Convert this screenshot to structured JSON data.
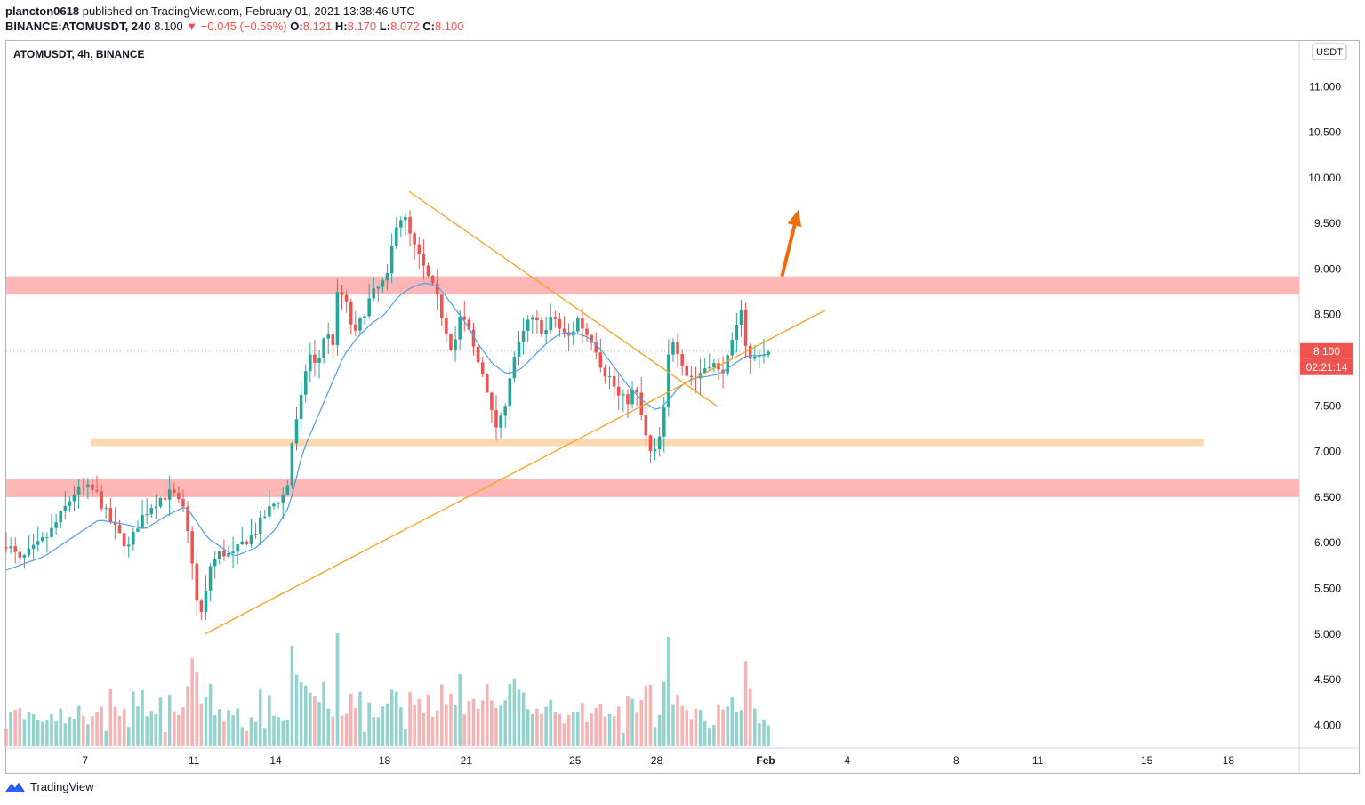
{
  "header": {
    "author": "plancton0618",
    "published": "published on TradingView.com, February 01, 2021 13:38:46 UTC",
    "symbol_line": "BINANCE:ATOMUSDT, 240",
    "last": "8.100",
    "change_arrow": "▼",
    "change": "−0.045 (−0.55%)",
    "o_label": "O:",
    "o": "8.121",
    "h_label": "H:",
    "h": "8.170",
    "l_label": "L:",
    "l": "8.072",
    "c_label": "C:",
    "c": "8.100"
  },
  "chart_title": "ATOMUSDT, 4h, BINANCE",
  "currency_label": "USDT",
  "footer": {
    "brand": "TradingView"
  },
  "colors": {
    "up": "#26a69a",
    "down": "#ef5350",
    "vol_up": "#80cbc4",
    "vol_down": "#f4a6a6",
    "ma": "#4a9fe0",
    "trend": "#f7a01d",
    "arrow": "#f26b0a",
    "zone_red": "#ffb6b6",
    "zone_orange": "#fcd9b0"
  },
  "chart_data": {
    "type": "candlestick",
    "symbol": "ATOMUSDT",
    "interval": "4h",
    "exchange": "BINANCE",
    "last_price": "8.100",
    "countdown": "02:21:14",
    "y_ticks": [
      "4.000",
      "4.500",
      "5.000",
      "5.500",
      "6.000",
      "6.500",
      "7.000",
      "7.500",
      "8.000",
      "8.500",
      "9.000",
      "9.500",
      "10.000",
      "10.500",
      "11.000"
    ],
    "x_ticks": [
      {
        "day": 7,
        "label": "7"
      },
      {
        "day": 11,
        "label": "11"
      },
      {
        "day": 14,
        "label": "14"
      },
      {
        "day": 18,
        "label": "18"
      },
      {
        "day": 21,
        "label": "21"
      },
      {
        "day": 25,
        "label": "25"
      },
      {
        "day": 28,
        "label": "28"
      },
      {
        "day": 32,
        "label": "Feb"
      },
      {
        "day": 35,
        "label": "4"
      },
      {
        "day": 39,
        "label": "8"
      },
      {
        "day": 42,
        "label": "11"
      },
      {
        "day": 46,
        "label": "15"
      },
      {
        "day": 49,
        "label": "18"
      }
    ],
    "ylim": [
      3.75,
      11.5
    ],
    "xlim": [
      4.1,
      51.6
    ],
    "close_anchors": [
      [
        4.1,
        6.0
      ],
      [
        4.6,
        5.8
      ],
      [
        5.2,
        5.95
      ],
      [
        5.7,
        6.1
      ],
      [
        6.2,
        6.35
      ],
      [
        6.6,
        6.55
      ],
      [
        7.0,
        6.6
      ],
      [
        7.4,
        6.55
      ],
      [
        7.8,
        6.3
      ],
      [
        8.2,
        6.1
      ],
      [
        8.6,
        5.95
      ],
      [
        9.0,
        6.25
      ],
      [
        9.4,
        6.4
      ],
      [
        9.8,
        6.5
      ],
      [
        10.2,
        6.55
      ],
      [
        10.6,
        6.35
      ],
      [
        10.9,
        5.9
      ],
      [
        11.1,
        5.35
      ],
      [
        11.3,
        5.2
      ],
      [
        11.6,
        5.75
      ],
      [
        12.0,
        5.9
      ],
      [
        12.4,
        5.85
      ],
      [
        12.8,
        6.0
      ],
      [
        13.2,
        6.1
      ],
      [
        13.6,
        6.3
      ],
      [
        14.0,
        6.45
      ],
      [
        14.4,
        6.55
      ],
      [
        14.6,
        7.1
      ],
      [
        14.9,
        7.5
      ],
      [
        15.2,
        8.1
      ],
      [
        15.5,
        7.9
      ],
      [
        15.8,
        8.3
      ],
      [
        16.1,
        8.2
      ],
      [
        16.3,
        8.8
      ],
      [
        16.6,
        8.6
      ],
      [
        16.9,
        8.25
      ],
      [
        17.2,
        8.5
      ],
      [
        17.5,
        8.7
      ],
      [
        17.8,
        8.8
      ],
      [
        18.1,
        8.9
      ],
      [
        18.4,
        9.5
      ],
      [
        18.7,
        9.6
      ],
      [
        19.0,
        9.3
      ],
      [
        19.3,
        9.1
      ],
      [
        19.6,
        8.9
      ],
      [
        19.9,
        8.7
      ],
      [
        20.2,
        8.4
      ],
      [
        20.5,
        8.1
      ],
      [
        20.8,
        8.5
      ],
      [
        21.1,
        8.3
      ],
      [
        21.4,
        8.0
      ],
      [
        21.7,
        7.8
      ],
      [
        22.0,
        7.3
      ],
      [
        22.2,
        7.25
      ],
      [
        22.4,
        7.5
      ],
      [
        22.7,
        8.0
      ],
      [
        23.0,
        8.2
      ],
      [
        23.3,
        8.45
      ],
      [
        23.6,
        8.4
      ],
      [
        23.9,
        8.3
      ],
      [
        24.2,
        8.5
      ],
      [
        24.5,
        8.3
      ],
      [
        24.8,
        8.25
      ],
      [
        25.1,
        8.45
      ],
      [
        25.4,
        8.3
      ],
      [
        25.7,
        8.2
      ],
      [
        26.0,
        7.9
      ],
      [
        26.3,
        7.8
      ],
      [
        26.6,
        7.6
      ],
      [
        26.9,
        7.55
      ],
      [
        27.2,
        7.7
      ],
      [
        27.5,
        7.3
      ],
      [
        27.7,
        7.0
      ],
      [
        27.9,
        6.95
      ],
      [
        28.1,
        7.15
      ],
      [
        28.3,
        7.5
      ],
      [
        28.5,
        8.3
      ],
      [
        28.8,
        8.1
      ],
      [
        29.1,
        7.85
      ],
      [
        29.4,
        7.8
      ],
      [
        29.7,
        7.9
      ],
      [
        30.0,
        8.0
      ],
      [
        30.3,
        7.85
      ],
      [
        30.6,
        8.0
      ],
      [
        30.9,
        8.3
      ],
      [
        31.1,
        8.6
      ],
      [
        31.3,
        8.1
      ],
      [
        31.5,
        7.95
      ],
      [
        31.7,
        8.1
      ],
      [
        32.0,
        8.05
      ],
      [
        32.2,
        8.1
      ]
    ],
    "ema_anchors": [
      [
        4.1,
        5.7
      ],
      [
        5.5,
        5.85
      ],
      [
        6.5,
        6.05
      ],
      [
        7.5,
        6.25
      ],
      [
        8.5,
        6.2
      ],
      [
        9.2,
        6.15
      ],
      [
        10.0,
        6.3
      ],
      [
        10.7,
        6.4
      ],
      [
        11.5,
        6.05
      ],
      [
        12.5,
        5.85
      ],
      [
        13.3,
        5.95
      ],
      [
        14.0,
        6.15
      ],
      [
        14.5,
        6.4
      ],
      [
        15.0,
        7.0
      ],
      [
        15.5,
        7.35
      ],
      [
        16.0,
        7.7
      ],
      [
        16.5,
        8.05
      ],
      [
        17.0,
        8.25
      ],
      [
        17.5,
        8.4
      ],
      [
        18.0,
        8.5
      ],
      [
        18.5,
        8.7
      ],
      [
        19.0,
        8.8
      ],
      [
        19.5,
        8.85
      ],
      [
        20.0,
        8.8
      ],
      [
        20.5,
        8.6
      ],
      [
        21.0,
        8.4
      ],
      [
        21.5,
        8.15
      ],
      [
        22.0,
        7.95
      ],
      [
        22.5,
        7.85
      ],
      [
        23.0,
        7.9
      ],
      [
        23.5,
        8.05
      ],
      [
        24.0,
        8.2
      ],
      [
        24.5,
        8.3
      ],
      [
        25.0,
        8.3
      ],
      [
        25.5,
        8.25
      ],
      [
        26.0,
        8.1
      ],
      [
        26.5,
        7.9
      ],
      [
        27.0,
        7.7
      ],
      [
        27.5,
        7.55
      ],
      [
        28.0,
        7.45
      ],
      [
        28.4,
        7.55
      ],
      [
        28.8,
        7.7
      ],
      [
        29.3,
        7.8
      ],
      [
        29.8,
        7.82
      ],
      [
        30.3,
        7.85
      ],
      [
        30.8,
        7.95
      ],
      [
        31.3,
        8.05
      ],
      [
        31.8,
        8.05
      ],
      [
        32.2,
        8.08
      ]
    ],
    "trend_lines": [
      {
        "name": "descending",
        "from": [
          18.9,
          9.85
        ],
        "to": [
          30.2,
          7.5
        ]
      },
      {
        "name": "ascending",
        "from": [
          11.4,
          5.0
        ],
        "to": [
          34.2,
          8.55
        ]
      }
    ],
    "zones": [
      {
        "color": "red",
        "from_day": 4.1,
        "to_day": 51.6,
        "low": 8.72,
        "high": 8.92
      },
      {
        "color": "orange",
        "from_day": 7.2,
        "to_day": 48.1,
        "low": 7.06,
        "high": 7.14
      },
      {
        "color": "red",
        "from_day": 4.1,
        "to_day": 51.6,
        "low": 6.5,
        "high": 6.7
      }
    ],
    "arrow": {
      "from": [
        32.6,
        8.92
      ],
      "to": [
        33.2,
        9.65
      ]
    },
    "grid": false,
    "legend": "none"
  }
}
